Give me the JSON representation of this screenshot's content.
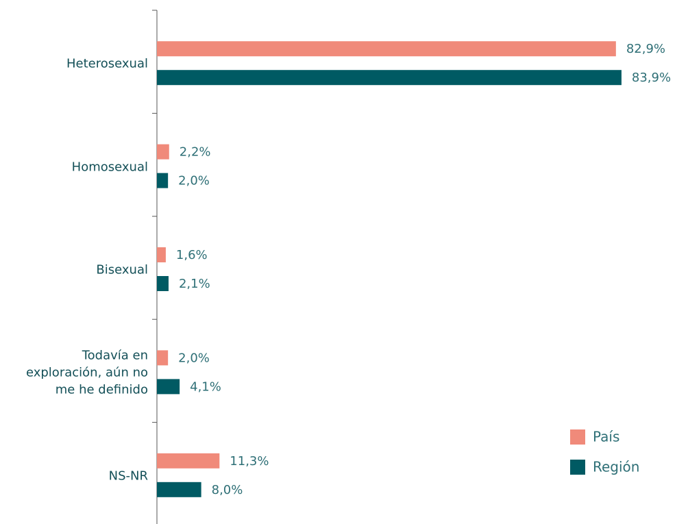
{
  "chart_data": {
    "type": "hbar",
    "categories": [
      "Heterosexual",
      "Homosexual",
      "Bisexual",
      "Todavía en exploración, aún no me he definido",
      "NS-NR"
    ],
    "series": [
      {
        "name": "País",
        "color": "#f08a7a",
        "values": [
          82.9,
          2.2,
          1.6,
          2.0,
          11.3
        ],
        "value_labels": [
          "82,9%",
          "2,2%",
          "1,6%",
          "2,0%",
          "11,3%"
        ]
      },
      {
        "name": "Región",
        "color": "#005a63",
        "values": [
          83.9,
          2.0,
          2.1,
          4.1,
          8.0
        ],
        "value_labels": [
          "83,9%",
          "2,0%",
          "2,1%",
          "4,1%",
          "8,0%"
        ]
      }
    ],
    "xlim": [
      0,
      100
    ]
  }
}
